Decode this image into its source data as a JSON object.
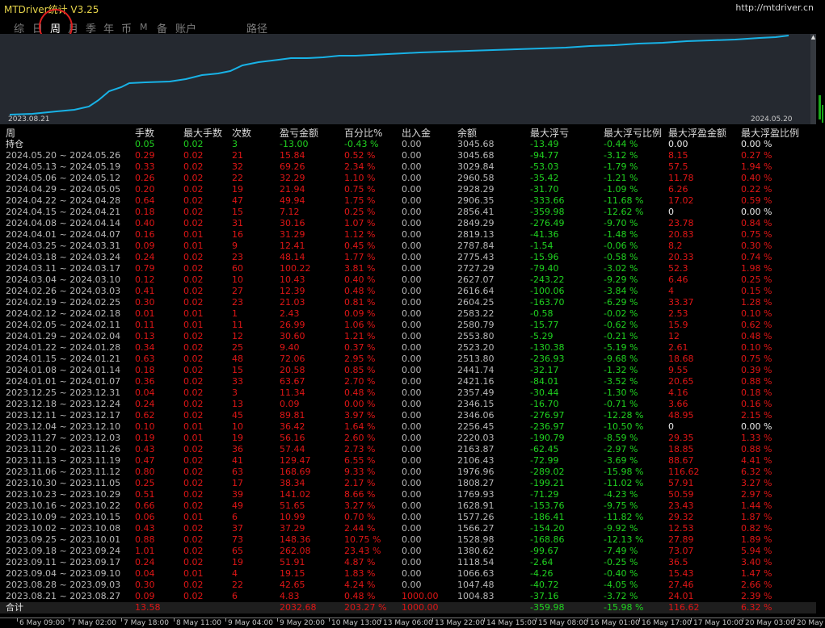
{
  "window": {
    "title": "MTDriver统计 V3.25",
    "url": "http://mtdriver.cn"
  },
  "tabs": [
    {
      "label": "综",
      "active": false
    },
    {
      "label": "日",
      "active": false
    },
    {
      "label": "周",
      "active": true
    },
    {
      "label": "月",
      "active": false
    },
    {
      "label": "季",
      "active": false
    },
    {
      "label": "年",
      "active": false
    },
    {
      "label": "币",
      "active": false
    },
    {
      "label": "M",
      "active": false
    },
    {
      "label": "备",
      "active": false
    },
    {
      "label": "账户",
      "active": false
    },
    {
      "label": "路径",
      "active": false
    }
  ],
  "chart": {
    "start_label": "2023.08.21",
    "end_label": "2024.05.20",
    "line_color": "#18b2e6",
    "scroll_arrow": "▲"
  },
  "table": {
    "headers": [
      "周",
      "手数",
      "最大手数",
      "次数",
      "盈亏金额",
      "百分比%",
      "出入金",
      "余额",
      "最大浮亏",
      "最大浮亏比例",
      "最大浮盈金额",
      "最大浮盈比例"
    ],
    "position_row": [
      "持仓",
      "0.05",
      "0.02",
      "3",
      "-13.00",
      "-0.43 %",
      "0.00",
      "3045.68",
      "-13.49",
      "-0.44 %",
      "0.00",
      "0.00 %"
    ],
    "rows": [
      [
        "2024.05.20 ~ 2024.05.26",
        "0.29",
        "0.02",
        "21",
        "15.84",
        "0.52 %",
        "0.00",
        "3045.68",
        "-94.77",
        "-3.12 %",
        "8.15",
        "0.27 %"
      ],
      [
        "2024.05.13 ~ 2024.05.19",
        "0.33",
        "0.02",
        "32",
        "69.26",
        "2.34 %",
        "0.00",
        "3029.84",
        "-53.03",
        "-1.79 %",
        "57.5",
        "1.94 %"
      ],
      [
        "2024.05.06 ~ 2024.05.12",
        "0.26",
        "0.02",
        "22",
        "32.29",
        "1.10 %",
        "0.00",
        "2960.58",
        "-35.42",
        "-1.21 %",
        "11.78",
        "0.40 %"
      ],
      [
        "2024.04.29 ~ 2024.05.05",
        "0.20",
        "0.02",
        "19",
        "21.94",
        "0.75 %",
        "0.00",
        "2928.29",
        "-31.70",
        "-1.09 %",
        "6.26",
        "0.22 %"
      ],
      [
        "2024.04.22 ~ 2024.04.28",
        "0.64",
        "0.02",
        "47",
        "49.94",
        "1.75 %",
        "0.00",
        "2906.35",
        "-333.66",
        "-11.68 %",
        "17.02",
        "0.59 %"
      ],
      [
        "2024.04.15 ~ 2024.04.21",
        "0.18",
        "0.02",
        "15",
        "7.12",
        "0.25 %",
        "0.00",
        "2856.41",
        "-359.98",
        "-12.62 %",
        "0",
        "0.00 %"
      ],
      [
        "2024.04.08 ~ 2024.04.14",
        "0.40",
        "0.02",
        "31",
        "30.16",
        "1.07 %",
        "0.00",
        "2849.29",
        "-276.49",
        "-9.70 %",
        "23.78",
        "0.84 %"
      ],
      [
        "2024.04.01 ~ 2024.04.07",
        "0.16",
        "0.01",
        "16",
        "31.29",
        "1.12 %",
        "0.00",
        "2819.13",
        "-41.36",
        "-1.48 %",
        "20.83",
        "0.75 %"
      ],
      [
        "2024.03.25 ~ 2024.03.31",
        "0.09",
        "0.01",
        "9",
        "12.41",
        "0.45 %",
        "0.00",
        "2787.84",
        "-1.54",
        "-0.06 %",
        "8.2",
        "0.30 %"
      ],
      [
        "2024.03.18 ~ 2024.03.24",
        "0.24",
        "0.02",
        "23",
        "48.14",
        "1.77 %",
        "0.00",
        "2775.43",
        "-15.96",
        "-0.58 %",
        "20.33",
        "0.74 %"
      ],
      [
        "2024.03.11 ~ 2024.03.17",
        "0.79",
        "0.02",
        "60",
        "100.22",
        "3.81 %",
        "0.00",
        "2727.29",
        "-79.40",
        "-3.02 %",
        "52.3",
        "1.98 %"
      ],
      [
        "2024.03.04 ~ 2024.03.10",
        "0.12",
        "0.02",
        "10",
        "10.43",
        "0.40 %",
        "0.00",
        "2627.07",
        "-243.22",
        "-9.29 %",
        "6.46",
        "0.25 %"
      ],
      [
        "2024.02.26 ~ 2024.03.03",
        "0.41",
        "0.02",
        "27",
        "12.39",
        "0.48 %",
        "0.00",
        "2616.64",
        "-100.06",
        "-3.84 %",
        "4",
        "0.15 %"
      ],
      [
        "2024.02.19 ~ 2024.02.25",
        "0.30",
        "0.02",
        "23",
        "21.03",
        "0.81 %",
        "0.00",
        "2604.25",
        "-163.70",
        "-6.29 %",
        "33.37",
        "1.28 %"
      ],
      [
        "2024.02.12 ~ 2024.02.18",
        "0.01",
        "0.01",
        "1",
        "2.43",
        "0.09 %",
        "0.00",
        "2583.22",
        "-0.58",
        "-0.02 %",
        "2.53",
        "0.10 %"
      ],
      [
        "2024.02.05 ~ 2024.02.11",
        "0.11",
        "0.01",
        "11",
        "26.99",
        "1.06 %",
        "0.00",
        "2580.79",
        "-15.77",
        "-0.62 %",
        "15.9",
        "0.62 %"
      ],
      [
        "2024.01.29 ~ 2024.02.04",
        "0.13",
        "0.02",
        "12",
        "30.60",
        "1.21 %",
        "0.00",
        "2553.80",
        "-5.29",
        "-0.21 %",
        "12",
        "0.48 %"
      ],
      [
        "2024.01.22 ~ 2024.01.28",
        "0.34",
        "0.02",
        "25",
        "9.40",
        "0.37 %",
        "0.00",
        "2523.20",
        "-130.38",
        "-5.19 %",
        "2.61",
        "0.10 %"
      ],
      [
        "2024.01.15 ~ 2024.01.21",
        "0.63",
        "0.02",
        "48",
        "72.06",
        "2.95 %",
        "0.00",
        "2513.80",
        "-236.93",
        "-9.68 %",
        "18.68",
        "0.75 %"
      ],
      [
        "2024.01.08 ~ 2024.01.14",
        "0.18",
        "0.02",
        "15",
        "20.58",
        "0.85 %",
        "0.00",
        "2441.74",
        "-32.17",
        "-1.32 %",
        "9.55",
        "0.39 %"
      ],
      [
        "2024.01.01 ~ 2024.01.07",
        "0.36",
        "0.02",
        "33",
        "63.67",
        "2.70 %",
        "0.00",
        "2421.16",
        "-84.01",
        "-3.52 %",
        "20.65",
        "0.88 %"
      ],
      [
        "2023.12.25 ~ 2023.12.31",
        "0.04",
        "0.02",
        "3",
        "11.34",
        "0.48 %",
        "0.00",
        "2357.49",
        "-30.44",
        "-1.30 %",
        "4.16",
        "0.18 %"
      ],
      [
        "2023.12.18 ~ 2023.12.24",
        "0.24",
        "0.02",
        "13",
        "0.09",
        "0.00 %",
        "0.00",
        "2346.15",
        "-16.70",
        "-0.71 %",
        "3.66",
        "0.16 %"
      ],
      [
        "2023.12.11 ~ 2023.12.17",
        "0.62",
        "0.02",
        "45",
        "89.81",
        "3.97 %",
        "0.00",
        "2346.06",
        "-276.97",
        "-12.28 %",
        "48.95",
        "2.15 %"
      ],
      [
        "2023.12.04 ~ 2023.12.10",
        "0.10",
        "0.01",
        "10",
        "36.42",
        "1.64 %",
        "0.00",
        "2256.45",
        "-236.97",
        "-10.50 %",
        "0",
        "0.00 %"
      ],
      [
        "2023.11.27 ~ 2023.12.03",
        "0.19",
        "0.01",
        "19",
        "56.16",
        "2.60 %",
        "0.00",
        "2220.03",
        "-190.79",
        "-8.59 %",
        "29.35",
        "1.33 %"
      ],
      [
        "2023.11.20 ~ 2023.11.26",
        "0.43",
        "0.02",
        "36",
        "57.44",
        "2.73 %",
        "0.00",
        "2163.87",
        "-62.45",
        "-2.97 %",
        "18.85",
        "0.88 %"
      ],
      [
        "2023.11.13 ~ 2023.11.19",
        "0.47",
        "0.02",
        "41",
        "129.47",
        "6.55 %",
        "0.00",
        "2106.43",
        "-72.99",
        "-3.69 %",
        "88.67",
        "4.41 %"
      ],
      [
        "2023.11.06 ~ 2023.11.12",
        "0.80",
        "0.02",
        "63",
        "168.69",
        "9.33 %",
        "0.00",
        "1976.96",
        "-289.02",
        "-15.98 %",
        "116.62",
        "6.32 %"
      ],
      [
        "2023.10.30 ~ 2023.11.05",
        "0.25",
        "0.02",
        "17",
        "38.34",
        "2.17 %",
        "0.00",
        "1808.27",
        "-199.21",
        "-11.02 %",
        "57.91",
        "3.27 %"
      ],
      [
        "2023.10.23 ~ 2023.10.29",
        "0.51",
        "0.02",
        "39",
        "141.02",
        "8.66 %",
        "0.00",
        "1769.93",
        "-71.29",
        "-4.23 %",
        "50.59",
        "2.97 %"
      ],
      [
        "2023.10.16 ~ 2023.10.22",
        "0.66",
        "0.02",
        "49",
        "51.65",
        "3.27 %",
        "0.00",
        "1628.91",
        "-153.76",
        "-9.75 %",
        "23.43",
        "1.44 %"
      ],
      [
        "2023.10.09 ~ 2023.10.15",
        "0.06",
        "0.01",
        "6",
        "10.99",
        "0.70 %",
        "0.00",
        "1577.26",
        "-186.41",
        "-11.82 %",
        "29.32",
        "1.87 %"
      ],
      [
        "2023.10.02 ~ 2023.10.08",
        "0.43",
        "0.02",
        "37",
        "37.29",
        "2.44 %",
        "0.00",
        "1566.27",
        "-154.20",
        "-9.92 %",
        "12.53",
        "0.82 %"
      ],
      [
        "2023.09.25 ~ 2023.10.01",
        "0.88",
        "0.02",
        "73",
        "148.36",
        "10.75 %",
        "0.00",
        "1528.98",
        "-168.86",
        "-12.13 %",
        "27.89",
        "1.89 %"
      ],
      [
        "2023.09.18 ~ 2023.09.24",
        "1.01",
        "0.02",
        "65",
        "262.08",
        "23.43 %",
        "0.00",
        "1380.62",
        "-99.67",
        "-7.49 %",
        "73.07",
        "5.94 %"
      ],
      [
        "2023.09.11 ~ 2023.09.17",
        "0.24",
        "0.02",
        "19",
        "51.91",
        "4.87 %",
        "0.00",
        "1118.54",
        "-2.64",
        "-0.25 %",
        "36.5",
        "3.40 %"
      ],
      [
        "2023.09.04 ~ 2023.09.10",
        "0.04",
        "0.01",
        "4",
        "19.15",
        "1.83 %",
        "0.00",
        "1066.63",
        "-4.26",
        "-0.40 %",
        "15.43",
        "1.47 %"
      ],
      [
        "2023.08.28 ~ 2023.09.03",
        "0.30",
        "0.02",
        "22",
        "42.65",
        "4.24 %",
        "0.00",
        "1047.48",
        "-40.72",
        "-4.05 %",
        "27.46",
        "2.66 %"
      ],
      [
        "2023.08.21 ~ 2023.08.27",
        "0.09",
        "0.02",
        "6",
        "4.83",
        "0.48 %",
        "1000.00",
        "1004.83",
        "-37.16",
        "-3.72 %",
        "24.01",
        "2.39 %"
      ]
    ],
    "total_row": [
      "合计",
      "13.58",
      "",
      "",
      "2032.68",
      "203.27 %",
      "1000.00",
      "",
      "-359.98",
      "-15.98 %",
      "116.62",
      "6.32 %"
    ]
  },
  "time_axis": [
    "6 May 09:00",
    "7 May 02:00",
    "7 May 18:00",
    "8 May 11:00",
    "9 May 04:00",
    "9 May 20:00",
    "10 May 13:00",
    "13 May 06:00",
    "13 May 22:00",
    "14 May 15:00",
    "15 May 08:00",
    "16 May 01:00",
    "16 May 17:00",
    "17 May 10:00",
    "20 May 03:00",
    "20 May"
  ]
}
